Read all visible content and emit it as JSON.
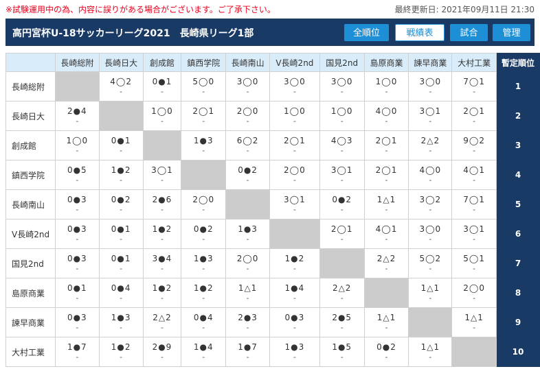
{
  "notice": "※試験運用中の為、内容に誤りがある場合がございます。ご了承下さい。",
  "updated": "最終更新日: 2021年09月11日 21:30",
  "title": "高円宮杯U-18サッカーリーグ2021　長崎県リーグ1部",
  "nav": {
    "standings": "全順位",
    "results": "戦績表",
    "matches": "試合",
    "admin": "管理"
  },
  "rank_header": "暫定順位",
  "teams": [
    "長崎総附",
    "長崎日大",
    "創成館",
    "鎮西学院",
    "長崎南山",
    "V長崎2nd",
    "国見2nd",
    "島原商業",
    "諫早商業",
    "大村工業"
  ],
  "row_labels": [
    "長崎総附",
    "長崎日大",
    "創成館",
    "鎮西学院",
    "長崎南山",
    "V長崎2nd",
    "国見2nd",
    "島原商業",
    "諫早商業",
    "大村工業"
  ],
  "ranks": [
    "1",
    "2",
    "3",
    "4",
    "5",
    "6",
    "7",
    "8",
    "9",
    "10"
  ],
  "results": [
    [
      "",
      "4◯2",
      "0●1",
      "5◯0",
      "3◯0",
      "3◯0",
      "3◯0",
      "1◯0",
      "3◯0",
      "7◯1"
    ],
    [
      "2●4",
      "",
      "1◯0",
      "2◯1",
      "2◯0",
      "1◯0",
      "1◯0",
      "4◯0",
      "3◯1",
      "2◯1"
    ],
    [
      "1◯0",
      "0●1",
      "",
      "1●3",
      "6◯2",
      "2◯1",
      "4◯3",
      "2◯1",
      "2△2",
      "9◯2"
    ],
    [
      "0●5",
      "1●2",
      "3◯1",
      "",
      "0●2",
      "2◯0",
      "3◯1",
      "2◯1",
      "4◯0",
      "4◯1"
    ],
    [
      "0●3",
      "0●2",
      "2●6",
      "2◯0",
      "",
      "3◯1",
      "0●2",
      "1△1",
      "3◯2",
      "7◯1"
    ],
    [
      "0●3",
      "0●1",
      "1●2",
      "0●2",
      "1●3",
      "",
      "2◯1",
      "4◯1",
      "3◯0",
      "3◯1"
    ],
    [
      "0●3",
      "0●1",
      "3●4",
      "1●3",
      "2◯0",
      "1●2",
      "",
      "2△2",
      "5◯2",
      "5◯1"
    ],
    [
      "0●1",
      "0●4",
      "1●2",
      "1●2",
      "1△1",
      "1●4",
      "2△2",
      "",
      "1△1",
      "2◯0"
    ],
    [
      "0●3",
      "1●3",
      "2△2",
      "0●4",
      "2●3",
      "0●3",
      "2●5",
      "1△1",
      "",
      "1△1"
    ],
    [
      "1●7",
      "1●2",
      "2●9",
      "1●4",
      "1●7",
      "1●3",
      "1●5",
      "0●2",
      "1△1",
      ""
    ]
  ],
  "subline": "-"
}
